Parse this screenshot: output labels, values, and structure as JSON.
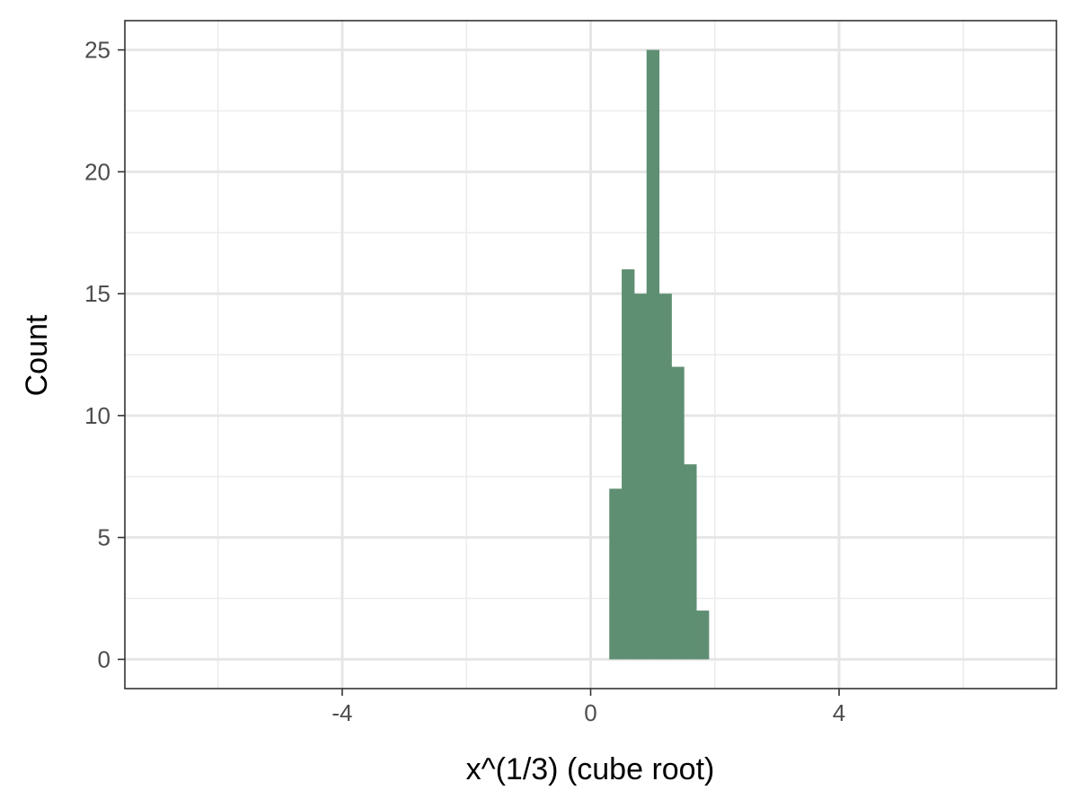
{
  "chart_data": {
    "type": "bar",
    "title": "",
    "xlabel": "x^(1/3) (cube root)",
    "ylabel": "Count",
    "bar_color": "#5f8f73",
    "xlim": [
      -7.5,
      7.5
    ],
    "ylim": [
      -1.2,
      26.2
    ],
    "x_ticks": [
      -4,
      0,
      4
    ],
    "x_tick_labels": [
      "-4",
      "0",
      "4"
    ],
    "y_ticks": [
      0,
      5,
      10,
      15,
      20,
      25
    ],
    "y_tick_labels": [
      "0",
      "5",
      "10",
      "15",
      "20",
      "25"
    ],
    "grid": true,
    "legend": "none",
    "bins": [
      {
        "x0": 0.3,
        "x1": 0.5,
        "count": 7
      },
      {
        "x0": 0.5,
        "x1": 0.7,
        "count": 16
      },
      {
        "x0": 0.7,
        "x1": 0.9,
        "count": 15
      },
      {
        "x0": 0.9,
        "x1": 1.1,
        "count": 25
      },
      {
        "x0": 1.1,
        "x1": 1.3,
        "count": 15
      },
      {
        "x0": 1.3,
        "x1": 1.5,
        "count": 12
      },
      {
        "x0": 1.5,
        "x1": 1.7,
        "count": 8
      },
      {
        "x0": 1.7,
        "x1": 1.9,
        "count": 2
      }
    ]
  }
}
